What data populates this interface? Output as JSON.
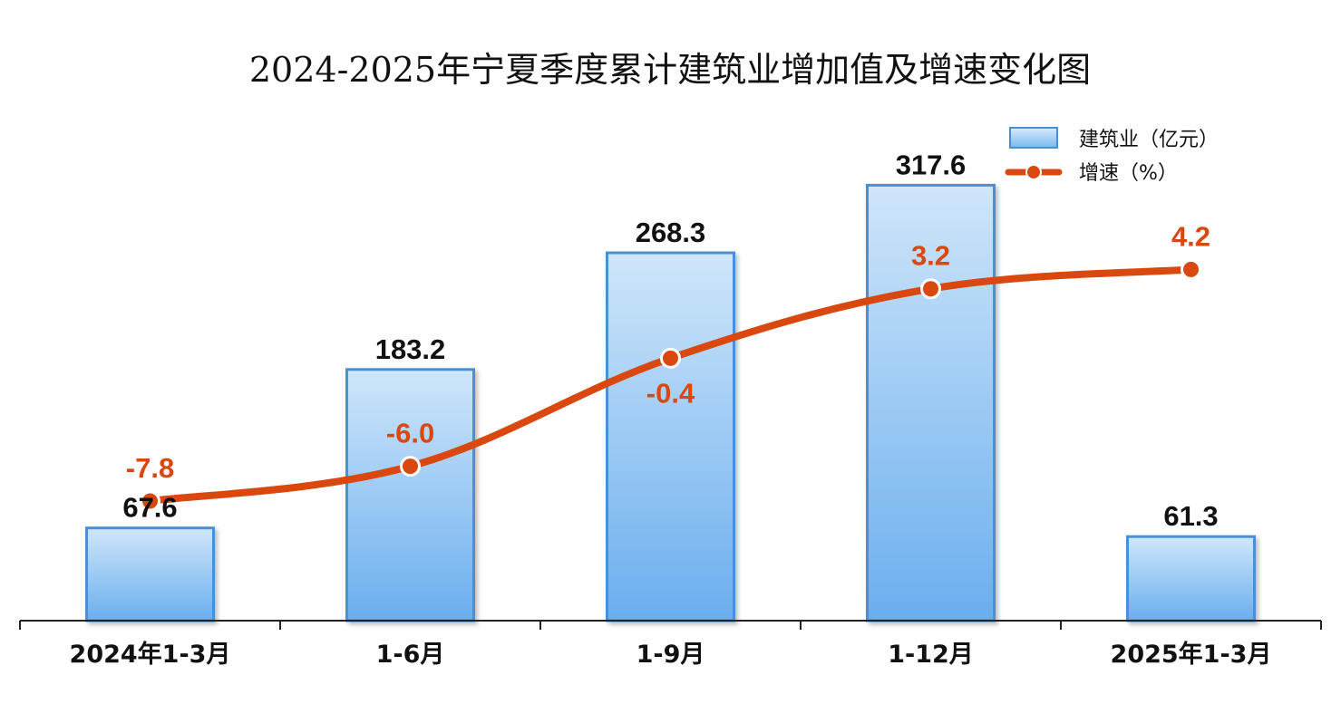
{
  "chart_data": {
    "type": "bar",
    "title": "2024-2025年宁夏季度累计建筑业增加值及增速变化图",
    "categories": [
      "2024年1-3月",
      "1-6月",
      "1-9月",
      "1-12月",
      "2025年1-3月"
    ],
    "series": [
      {
        "name": "建筑业（亿元）",
        "type": "bar",
        "values": [
          67.6,
          183.2,
          268.3,
          317.6,
          61.3
        ],
        "labels": [
          "67.6",
          "183.2",
          "268.3",
          "317.6",
          "61.3"
        ],
        "color": "#4a90d9"
      },
      {
        "name": "增速（%）",
        "type": "line",
        "values": [
          -7.8,
          -6.0,
          -0.4,
          3.2,
          4.2
        ],
        "labels": [
          "-7.8",
          "-6.0",
          "-0.4",
          "3.2",
          "4.2"
        ],
        "color": "#d9480f"
      }
    ],
    "y_bar_range": [
      0,
      380
    ],
    "y_line_range": [
      -14,
      13
    ],
    "legend_position": "top-right",
    "grid": false
  }
}
